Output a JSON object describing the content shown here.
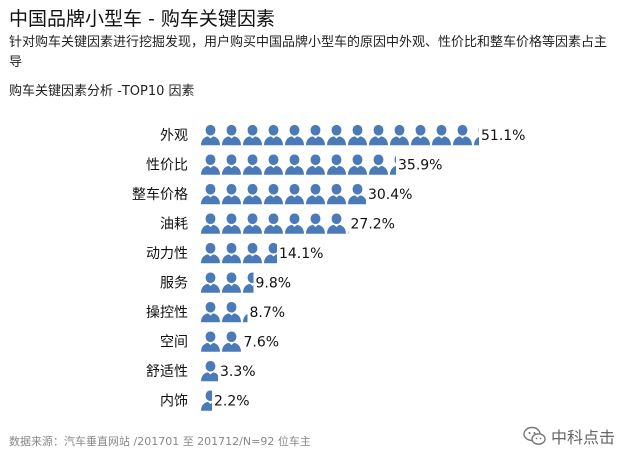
{
  "header": {
    "title": "中国品牌小型车 - 购车关键因素",
    "subtitle": "针对购车关键因素进行挖掘发现，用户购买中国品牌小型车的原因中外观、性价比和整车价格等因素占主导"
  },
  "chart_data": {
    "type": "bar",
    "orientation": "horizontal",
    "style": "pictogram",
    "title": "购车关键因素分析 -TOP10 因素",
    "categories": [
      "外观",
      "性价比",
      "整车价格",
      "油耗",
      "动力性",
      "服务",
      "操控性",
      "空间",
      "舒适性",
      "内饰"
    ],
    "values": [
      51.1,
      35.9,
      30.4,
      27.2,
      14.1,
      9.8,
      8.7,
      7.6,
      3.3,
      2.2
    ],
    "value_labels": [
      "51.1%",
      "35.9%",
      "30.4%",
      "27.2%",
      "14.1%",
      "9.8%",
      "8.7%",
      "7.6%",
      "3.3%",
      "2.2%"
    ],
    "unit": "%",
    "icon": "person-icon",
    "color": "#4a7ab8"
  },
  "footer": {
    "source": "数据来源：汽车垂直网站 /201701 至 201712/N=92 位车主",
    "brand": "中科点击"
  }
}
